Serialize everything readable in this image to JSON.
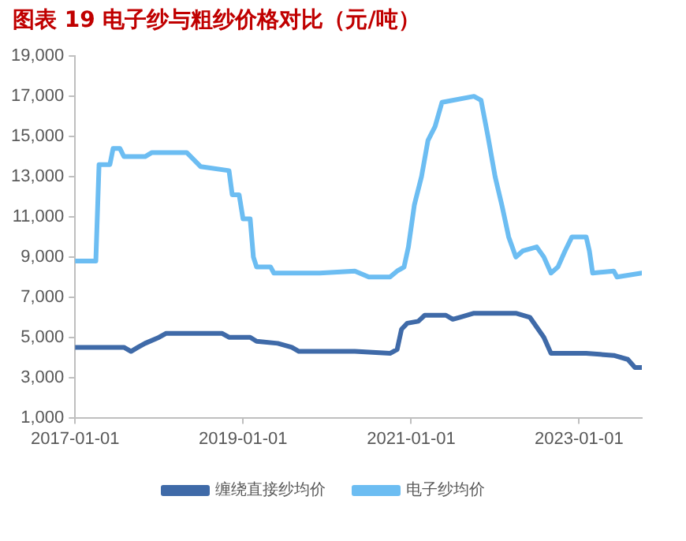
{
  "chart_data": {
    "type": "line",
    "title": "图表 19 电子纱与粗纱价格对比（元/吨）",
    "xlim": [
      "2017-01-01",
      "2023-10-01"
    ],
    "xticks": [
      "2017-01-01",
      "2019-01-01",
      "2021-01-01",
      "2023-01-01"
    ],
    "ylim": [
      1000,
      19000
    ],
    "yticks": [
      {
        "value": 1000,
        "label": "1,000"
      },
      {
        "value": 3000,
        "label": "3,000"
      },
      {
        "value": 5000,
        "label": "5,000"
      },
      {
        "value": 7000,
        "label": "7,000"
      },
      {
        "value": 9000,
        "label": "9,000"
      },
      {
        "value": 11000,
        "label": "11,000"
      },
      {
        "value": 13000,
        "label": "13,000"
      },
      {
        "value": 15000,
        "label": "15,000"
      },
      {
        "value": 17000,
        "label": "17,000"
      },
      {
        "value": 19000,
        "label": "19,000"
      }
    ],
    "grid": false,
    "legend": "bottom",
    "marker": "none",
    "line_style": "solid",
    "series": [
      {
        "name": "缠绕直接纱均价",
        "color": "#3f6aa8",
        "x": [
          "2017-01-01",
          "2017-08-01",
          "2017-09-01",
          "2017-10-01",
          "2017-11-01",
          "2018-01-01",
          "2018-02-01",
          "2018-10-01",
          "2018-11-01",
          "2019-02-01",
          "2019-03-01",
          "2019-06-01",
          "2019-08-01",
          "2019-09-01",
          "2020-05-01",
          "2020-10-01",
          "2020-11-01",
          "2020-11-20",
          "2020-12-15",
          "2021-02-01",
          "2021-03-01",
          "2021-06-01",
          "2021-07-01",
          "2021-08-01",
          "2021-10-01",
          "2022-04-01",
          "2022-06-01",
          "2022-08-01",
          "2022-09-01",
          "2023-02-01",
          "2023-06-01",
          "2023-08-01",
          "2023-09-01",
          "2023-10-01"
        ],
        "values": [
          4500,
          4500,
          4300,
          4500,
          4700,
          5000,
          5200,
          5200,
          5000,
          5000,
          4800,
          4700,
          4500,
          4300,
          4300,
          4200,
          4400,
          5400,
          5700,
          5800,
          6100,
          6100,
          5900,
          6000,
          6200,
          6200,
          6000,
          5000,
          4200,
          4200,
          4100,
          3900,
          3500,
          3500
        ]
      },
      {
        "name": "电子纱均价",
        "color": "#6cbdf2",
        "x": [
          "2017-01-01",
          "2017-04-01",
          "2017-04-15",
          "2017-06-01",
          "2017-06-15",
          "2017-07-15",
          "2017-08-01",
          "2017-11-01",
          "2017-12-01",
          "2018-05-01",
          "2018-07-01",
          "2018-11-01",
          "2018-11-15",
          "2018-12-15",
          "2019-01-01",
          "2019-02-01",
          "2019-02-15",
          "2019-03-01",
          "2019-05-01",
          "2019-05-15",
          "2019-12-01",
          "2020-05-01",
          "2020-07-01",
          "2020-10-01",
          "2020-11-01",
          "2020-12-01",
          "2020-12-20",
          "2021-01-15",
          "2021-02-15",
          "2021-03-15",
          "2021-04-15",
          "2021-05-15",
          "2021-10-01",
          "2021-11-01",
          "2021-12-01",
          "2022-01-01",
          "2022-02-01",
          "2022-03-01",
          "2022-04-01",
          "2022-05-01",
          "2022-07-01",
          "2022-08-01",
          "2022-09-01",
          "2022-10-01",
          "2022-11-01",
          "2022-12-01",
          "2023-02-01",
          "2023-02-15",
          "2023-03-01",
          "2023-06-01",
          "2023-06-15",
          "2023-10-01"
        ],
        "values": [
          8800,
          8800,
          13600,
          13600,
          14400,
          14400,
          14000,
          14000,
          14200,
          14200,
          13500,
          13300,
          12100,
          12100,
          10900,
          10900,
          9000,
          8500,
          8500,
          8200,
          8200,
          8300,
          8000,
          8000,
          8300,
          8500,
          9500,
          11600,
          13000,
          14800,
          15500,
          16700,
          17000,
          16800,
          15000,
          13000,
          11500,
          10000,
          9000,
          9300,
          9500,
          9000,
          8200,
          8500,
          9300,
          10000,
          10000,
          9300,
          8200,
          8300,
          8000,
          8200
        ]
      }
    ]
  }
}
